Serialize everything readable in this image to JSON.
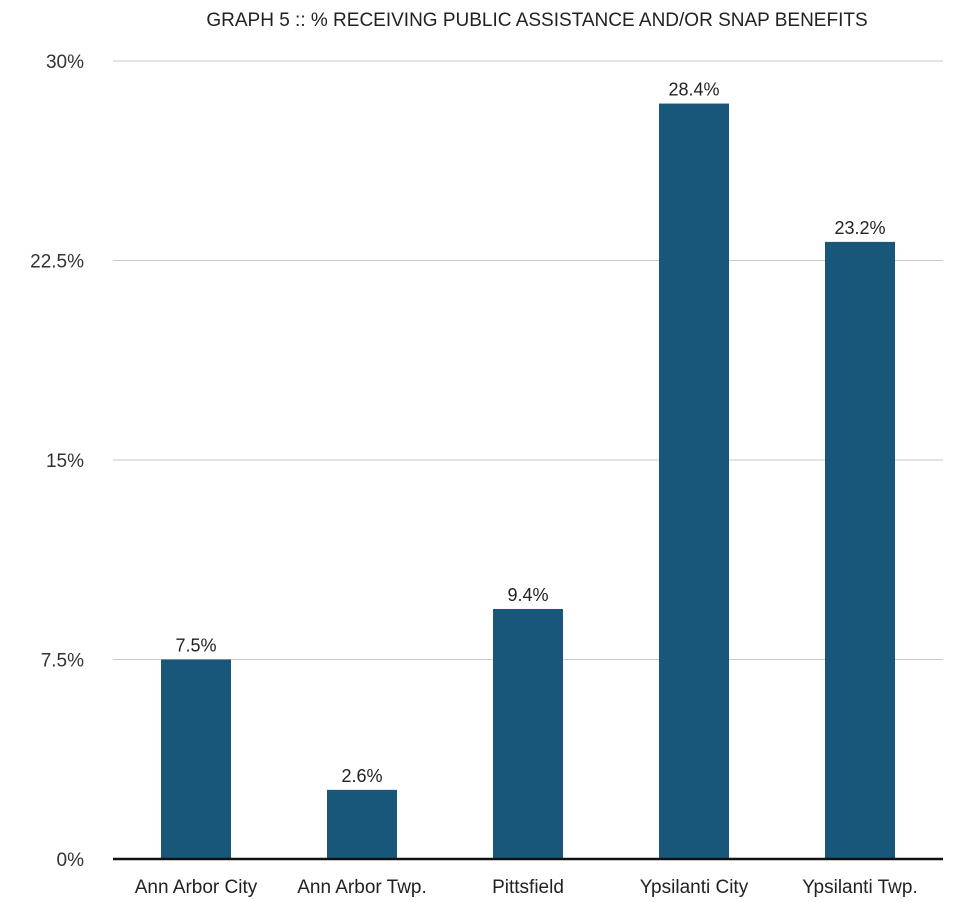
{
  "chart_data": {
    "type": "bar",
    "title": "GRAPH 5 :: % RECEIVING PUBLIC ASSISTANCE AND/OR SNAP BENEFITS",
    "xlabel": "",
    "ylabel": "",
    "categories": [
      "Ann Arbor City",
      "Ann Arbor Twp.",
      "Pittsfield",
      "Ypsilanti City",
      "Ypsilanti Twp."
    ],
    "values": [
      7.5,
      2.6,
      9.4,
      28.4,
      23.2
    ],
    "value_labels": [
      "7.5%",
      "2.6%",
      "9.4%",
      "28.4%",
      "23.2%"
    ],
    "yticks": [
      0,
      7.5,
      15,
      22.5,
      30
    ],
    "ytick_labels": [
      "0%",
      "7.5%",
      "15%",
      "22.5%",
      "30%"
    ],
    "ylim": [
      0,
      30
    ],
    "grid": true,
    "legend": "none",
    "bar_color": "#18577a"
  }
}
